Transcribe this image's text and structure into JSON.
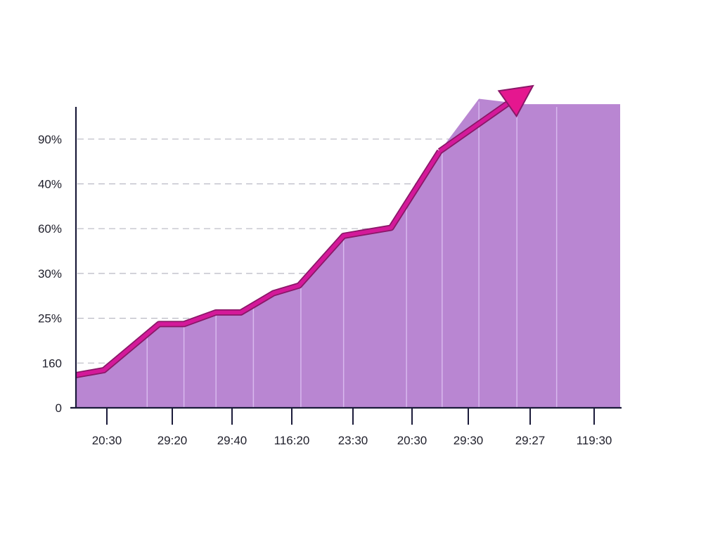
{
  "chart_data": {
    "type": "area",
    "title": "",
    "xlabel": "",
    "ylabel": "",
    "y_tick_labels": [
      "0",
      "160",
      "25%",
      "30%",
      "60%",
      "40%",
      "90%"
    ],
    "x_tick_labels": [
      "20:30",
      "29:20",
      "29:40",
      "116:20",
      "23:30",
      "20:30",
      "29:30",
      "29:27",
      "119:30"
    ],
    "ylim": [
      0,
      6.8
    ],
    "grid": true,
    "series": [
      {
        "x": [
          0,
          0.47,
          1.4,
          1.82,
          2.36,
          2.78,
          3.33,
          3.76,
          4.51,
          5.31,
          6.13,
          6.79,
          7.56,
          8.29,
          9.17
        ],
        "values": [
          0.73,
          0.84,
          1.87,
          1.87,
          2.13,
          2.13,
          2.56,
          2.73,
          3.84,
          4.02,
          5.73,
          6.9,
          6.78,
          6.78,
          6.78
        ]
      }
    ],
    "area_color": "#b986d2",
    "line_color": "#d4199a",
    "line_edge_color": "#8a1768",
    "arrow_color": "#e5178f"
  }
}
